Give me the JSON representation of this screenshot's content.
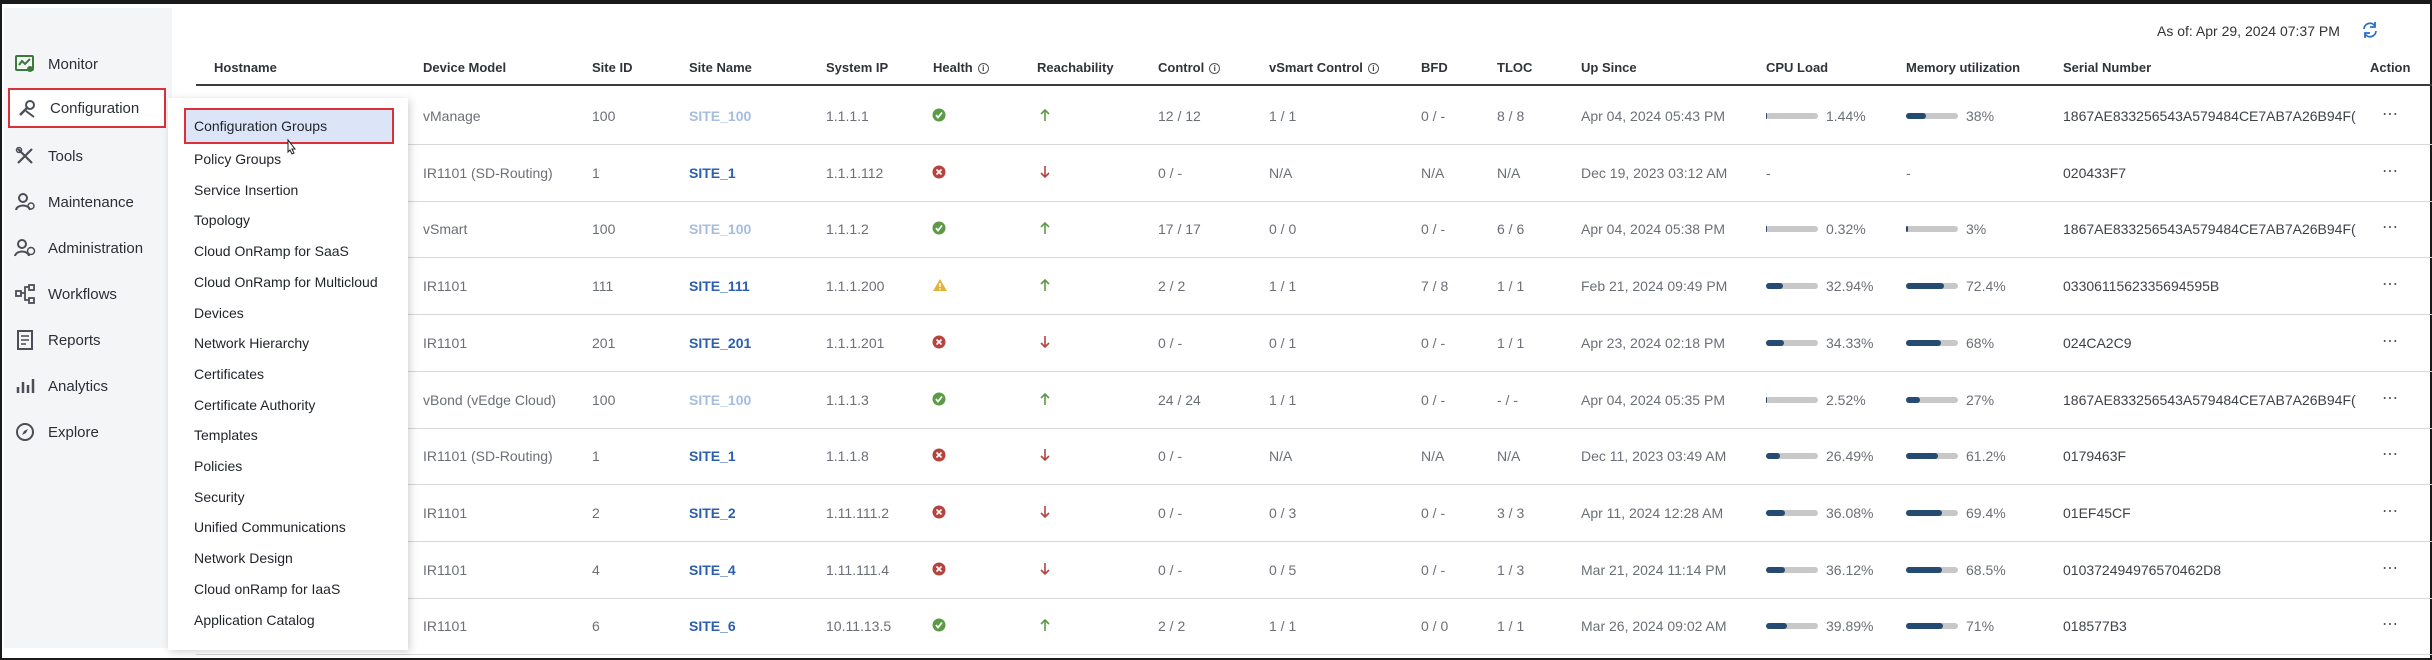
{
  "sidebar": {
    "items": [
      {
        "label": "Monitor",
        "icon": "monitor-icon",
        "active": false
      },
      {
        "label": "Configuration",
        "icon": "wrench-screwdriver-icon",
        "active": true
      },
      {
        "label": "Tools",
        "icon": "tools-icon",
        "active": false
      },
      {
        "label": "Maintenance",
        "icon": "maintenance-icon",
        "active": false
      },
      {
        "label": "Administration",
        "icon": "admin-users-icon",
        "active": false
      },
      {
        "label": "Workflows",
        "icon": "workflows-icon",
        "active": false
      },
      {
        "label": "Reports",
        "icon": "reports-icon",
        "active": false
      },
      {
        "label": "Analytics",
        "icon": "analytics-icon",
        "active": false
      },
      {
        "label": "Explore",
        "icon": "compass-icon",
        "active": false
      }
    ]
  },
  "config_menu": {
    "items": [
      "Configuration Groups",
      "Policy Groups",
      "Service Insertion",
      "Topology",
      "Cloud OnRamp for SaaS",
      "Cloud OnRamp for Multicloud",
      "Devices",
      "Network Hierarchy",
      "Certificates",
      "Certificate Authority",
      "Templates",
      "Policies",
      "Security",
      "Unified Communications",
      "Network Design",
      "Cloud onRamp for IaaS",
      "Application Catalog"
    ],
    "selected": "Configuration Groups"
  },
  "status": {
    "as_of": "As of: Apr 29, 2024 07:37 PM"
  },
  "table": {
    "headers": {
      "hostname": "Hostname",
      "device_model": "Device Model",
      "site_id": "Site ID",
      "site_name": "Site Name",
      "system_ip": "System IP",
      "health": "Health",
      "reachability": "Reachability",
      "control": "Control",
      "vsmart_control": "vSmart Control",
      "bfd": "BFD",
      "tloc": "TLOC",
      "up_since": "Up Since",
      "cpu_load": "CPU Load",
      "memory": "Memory utilization",
      "serial": "Serial Number",
      "action": "Action"
    },
    "rows": [
      {
        "model": "vManage",
        "site_id": "100",
        "site_name": "SITE_100",
        "faded": true,
        "ip": "1.1.1.1",
        "health": "good",
        "reach": "up",
        "control": "12 / 12",
        "vsmart": "1 / 1",
        "bfd": "0 / -",
        "tloc": "8 / 8",
        "up_since": "Apr 04, 2024 05:43 PM",
        "cpu": "1.44%",
        "cpu_val": 0.0144,
        "mem": "38%",
        "mem_val": 0.38,
        "serial": "1867AE833256543A579484CE7AB7A26B94F("
      },
      {
        "model": "IR1101 (SD-Routing)",
        "site_id": "1",
        "site_name": "SITE_1",
        "faded": false,
        "ip": "1.1.1.112",
        "health": "error",
        "reach": "down",
        "control": "0 / -",
        "vsmart": "N/A",
        "bfd": "N/A",
        "tloc": "N/A",
        "up_since": "Dec 19, 2023 03:12 AM",
        "cpu": "-",
        "cpu_val": null,
        "mem": "-",
        "mem_val": null,
        "serial": "020433F7"
      },
      {
        "model": "vSmart",
        "site_id": "100",
        "site_name": "SITE_100",
        "faded": true,
        "ip": "1.1.1.2",
        "health": "good",
        "reach": "up",
        "control": "17 / 17",
        "vsmart": "0 / 0",
        "bfd": "0 / -",
        "tloc": "6 / 6",
        "up_since": "Apr 04, 2024 05:38 PM",
        "cpu": "0.32%",
        "cpu_val": 0.0032,
        "mem": "3%",
        "mem_val": 0.03,
        "serial": "1867AE833256543A579484CE7AB7A26B94F("
      },
      {
        "model": "IR1101",
        "site_id": "111",
        "site_name": "SITE_111",
        "faded": false,
        "ip": "1.1.1.200",
        "health": "warning",
        "reach": "up",
        "control": "2 / 2",
        "vsmart": "1 / 1",
        "bfd": "7 / 8",
        "tloc": "1 / 1",
        "up_since": "Feb 21, 2024 09:49 PM",
        "cpu": "32.94%",
        "cpu_val": 0.3294,
        "mem": "72.4%",
        "mem_val": 0.724,
        "serial": "0330611562335694595B"
      },
      {
        "model": "IR1101",
        "site_id": "201",
        "site_name": "SITE_201",
        "faded": false,
        "ip": "1.1.1.201",
        "health": "error",
        "reach": "down",
        "control": "0 / -",
        "vsmart": "0 / 1",
        "bfd": "0 / -",
        "tloc": "1 / 1",
        "up_since": "Apr 23, 2024 02:18 PM",
        "cpu": "34.33%",
        "cpu_val": 0.3433,
        "mem": "68%",
        "mem_val": 0.68,
        "serial": "024CA2C9"
      },
      {
        "model": "vBond (vEdge Cloud)",
        "site_id": "100",
        "site_name": "SITE_100",
        "faded": true,
        "ip": "1.1.1.3",
        "health": "good",
        "reach": "up",
        "control": "24 / 24",
        "vsmart": "1 / 1",
        "bfd": "0 / -",
        "tloc": "- / -",
        "up_since": "Apr 04, 2024 05:35 PM",
        "cpu": "2.52%",
        "cpu_val": 0.0252,
        "mem": "27%",
        "mem_val": 0.27,
        "serial": "1867AE833256543A579484CE7AB7A26B94F("
      },
      {
        "model": "IR1101 (SD-Routing)",
        "site_id": "1",
        "site_name": "SITE_1",
        "faded": false,
        "ip": "1.1.1.8",
        "health": "error",
        "reach": "down",
        "control": "0 / -",
        "vsmart": "N/A",
        "bfd": "N/A",
        "tloc": "N/A",
        "up_since": "Dec 11, 2023 03:49 AM",
        "cpu": "26.49%",
        "cpu_val": 0.2649,
        "mem": "61.2%",
        "mem_val": 0.612,
        "serial": "0179463F"
      },
      {
        "model": "IR1101",
        "site_id": "2",
        "site_name": "SITE_2",
        "faded": false,
        "ip": "1.11.111.2",
        "health": "error",
        "reach": "down",
        "control": "0 / -",
        "vsmart": "0 / 3",
        "bfd": "0 / -",
        "tloc": "3 / 3",
        "up_since": "Apr 11, 2024 12:28 AM",
        "cpu": "36.08%",
        "cpu_val": 0.3608,
        "mem": "69.4%",
        "mem_val": 0.694,
        "serial": "01EF45CF"
      },
      {
        "model": "IR1101",
        "site_id": "4",
        "site_name": "SITE_4",
        "faded": false,
        "ip": "1.11.111.4",
        "health": "error",
        "reach": "down",
        "control": "0 / -",
        "vsmart": "0 / 5",
        "bfd": "0 / -",
        "tloc": "1 / 3",
        "up_since": "Mar 21, 2024 11:14 PM",
        "cpu": "36.12%",
        "cpu_val": 0.3612,
        "mem": "68.5%",
        "mem_val": 0.685,
        "serial": "010372494976570462D8"
      },
      {
        "model": "IR1101",
        "site_id": "6",
        "site_name": "SITE_6",
        "faded": false,
        "ip": "10.11.13.5",
        "health": "good",
        "reach": "up",
        "control": "2 / 2",
        "vsmart": "1 / 1",
        "bfd": "0 / 0",
        "tloc": "1 / 1",
        "up_since": "Mar 26, 2024 09:02 AM",
        "cpu": "39.89%",
        "cpu_val": 0.3989,
        "mem": "71%",
        "mem_val": 0.71,
        "serial": "018577B3"
      }
    ]
  },
  "colors": {
    "accent_red": "#d9303a",
    "link_blue": "#2b5fb0",
    "good": "#5b9b45",
    "error": "#b5443f",
    "warning": "#e0b43a",
    "bar_fill": "#264b73"
  }
}
